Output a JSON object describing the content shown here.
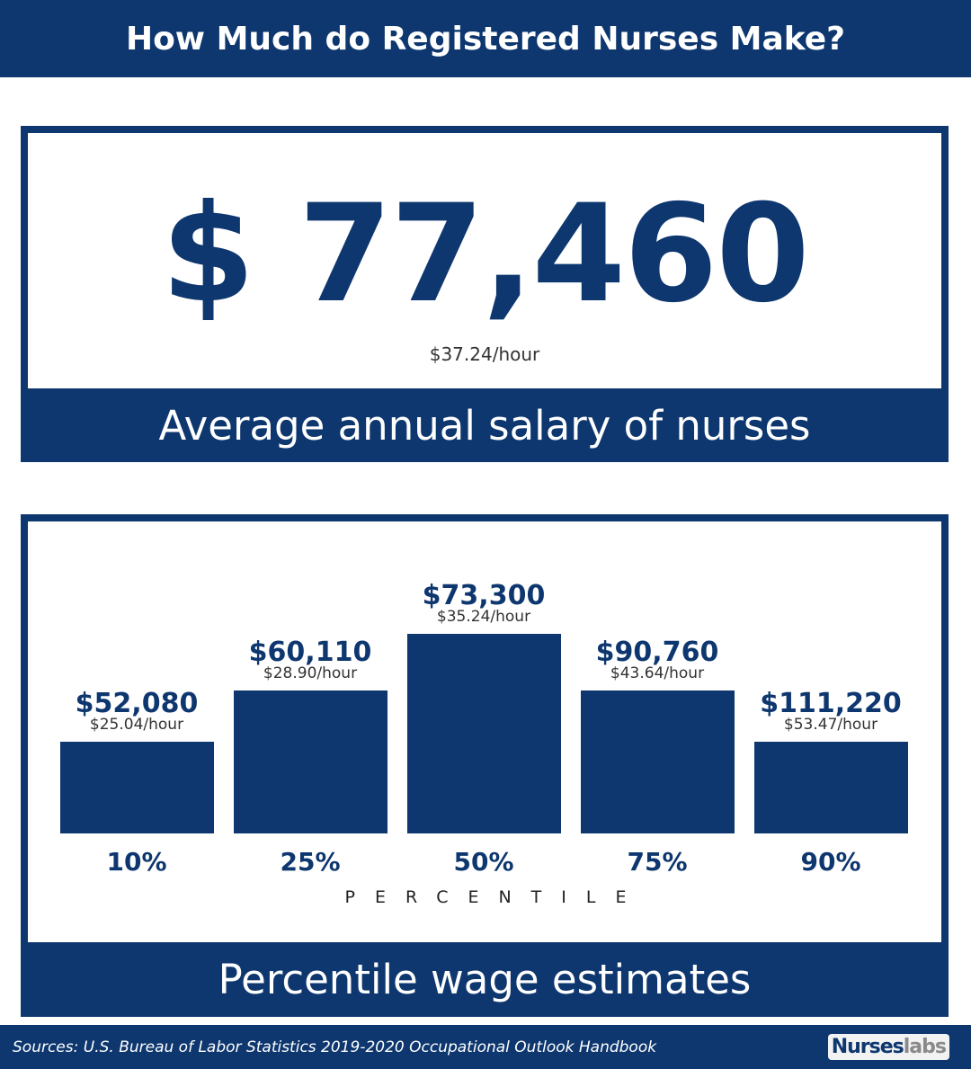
{
  "header": {
    "title": "How Much do Registered Nurses Make?"
  },
  "average": {
    "salary": "$ 77,460",
    "hourly": "$37.24/hour",
    "caption": "Average annual salary of nurses"
  },
  "chart_data": {
    "type": "bar",
    "title": "Percentile wage estimates",
    "xlabel": "PERCENTILE",
    "categories": [
      "10%",
      "25%",
      "50%",
      "75%",
      "90%"
    ],
    "values": [
      52080,
      60110,
      73300,
      90760,
      111220
    ],
    "value_labels": [
      "$52,080",
      "$60,110",
      "$73,300",
      "$90,760",
      "$111,220"
    ],
    "hourly_labels": [
      "$25.04/hour",
      "$28.90/hour",
      "$35.24/hour",
      "$43.64/hour",
      "$53.47/hour"
    ]
  },
  "footer": {
    "sources": "Sources: U.S. Bureau of Labor Statistics 2019-2020 Occupational Outlook Handbook",
    "logo_a": "Nurses",
    "logo_b": "labs"
  },
  "colors": {
    "navy": "#0e376f"
  }
}
